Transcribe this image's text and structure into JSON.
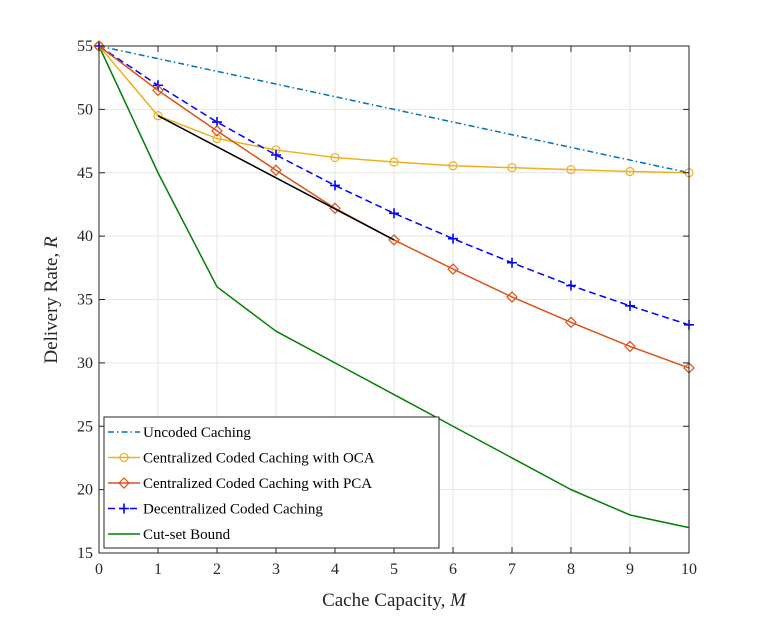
{
  "chart_data": {
    "type": "line",
    "xlabel": "Cache Capacity, ",
    "xlabel_var": "M",
    "ylabel": "Delivery Rate, ",
    "ylabel_var": "R",
    "xlim": [
      0,
      10
    ],
    "ylim": [
      15,
      55
    ],
    "xticks": [
      0,
      1,
      2,
      3,
      4,
      5,
      6,
      7,
      8,
      9,
      10
    ],
    "yticks": [
      15,
      20,
      25,
      30,
      35,
      40,
      45,
      50,
      55
    ],
    "grid": true,
    "legend_position": "bottom-left",
    "series": [
      {
        "name": "Uncoded Caching",
        "color": "#0072BD",
        "line": "dashdot",
        "marker": "none",
        "x": [
          0,
          1,
          2,
          3,
          4,
          5,
          6,
          7,
          8,
          9,
          10
        ],
        "y": [
          55,
          54,
          53,
          52,
          51,
          50,
          49,
          48,
          47,
          46,
          45
        ]
      },
      {
        "name": "Centralized Coded Caching with OCA",
        "color": "#EDB120",
        "line": "solid",
        "marker": "circle",
        "x": [
          0,
          1,
          2,
          3,
          4,
          5,
          6,
          7,
          8,
          9,
          10
        ],
        "y": [
          55,
          49.5,
          47.7,
          46.8,
          46.2,
          45.85,
          45.55,
          45.4,
          45.25,
          45.1,
          45.0
        ]
      },
      {
        "name": "Centralized Coded Caching with PCA",
        "color": "#D95319",
        "line": "solid",
        "marker": "diamond",
        "x": [
          0,
          1,
          2,
          3,
          4,
          5,
          6,
          7,
          8,
          9,
          10
        ],
        "y": [
          55,
          51.5,
          48.3,
          45.2,
          42.2,
          39.7,
          37.4,
          35.2,
          33.2,
          31.3,
          29.6
        ]
      },
      {
        "name": "Decentralized Coded Caching",
        "color": "#0000FF",
        "line": "dashed",
        "marker": "plus",
        "x": [
          0,
          1,
          2,
          3,
          4,
          5,
          6,
          7,
          8,
          9,
          10
        ],
        "y": [
          55,
          51.9,
          49.0,
          46.4,
          44.0,
          41.8,
          39.8,
          37.9,
          36.1,
          34.5,
          33.0
        ]
      },
      {
        "name": "Cut-set Bound",
        "color": "#008000",
        "line": "solid",
        "marker": "none",
        "x": [
          0,
          1,
          2,
          3,
          4,
          5,
          6,
          7,
          8,
          9,
          10
        ],
        "y": [
          55,
          45,
          36,
          32.5,
          30,
          27.5,
          25,
          22.5,
          20,
          18,
          17
        ]
      },
      {
        "name": "",
        "color": "#000000",
        "line": "solid",
        "marker": "none",
        "in_legend": false,
        "x": [
          1,
          5
        ],
        "y": [
          49.5,
          39.7
        ]
      }
    ]
  }
}
